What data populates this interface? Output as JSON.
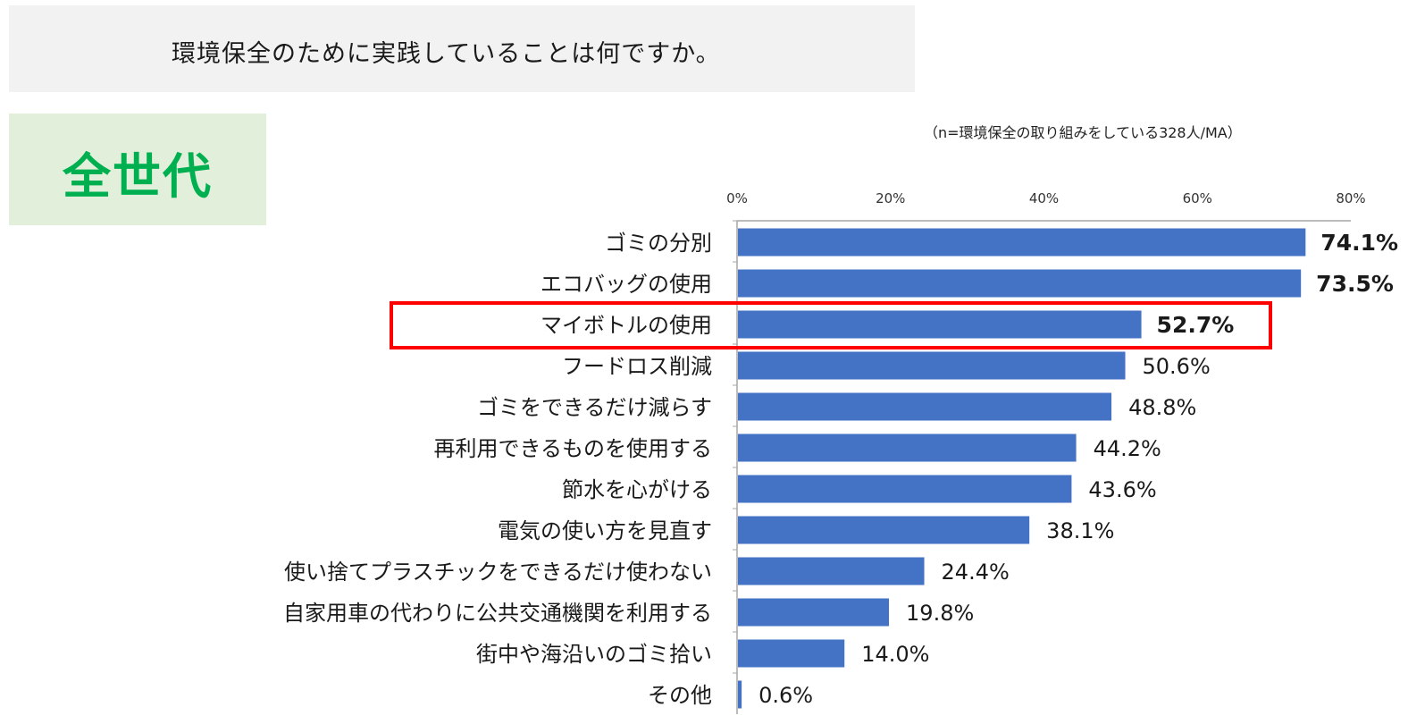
{
  "question": {
    "text": "環境保全のために実践していることは何ですか。"
  },
  "generation": {
    "label": "全世代"
  },
  "note": {
    "text": "（n=環境保全の取り組みをしている328人/MA）"
  },
  "highlight": {
    "color": "#ff0000",
    "category": "マイボトルの使用"
  },
  "chart_data": {
    "type": "bar",
    "orientation": "horizontal",
    "bar_color": "#4472c4",
    "categories": [
      "ゴミの分別",
      "エコバッグの使用",
      "マイボトルの使用",
      "フードロス削減",
      "ゴミをできるだけ減らす",
      "再利用できるものを使用する",
      "節水を心がける",
      "電気の使い方を見直す",
      "使い捨てプラスチックをできるだけ使わない",
      "自家用車の代わりに公共交通機関を利用する",
      "街中や海沿いのゴミ拾い",
      "その他"
    ],
    "values": [
      74.1,
      73.5,
      52.7,
      50.6,
      48.8,
      44.2,
      43.6,
      38.1,
      24.4,
      19.8,
      14.0,
      0.6
    ],
    "value_labels": [
      "74.1%",
      "73.5%",
      "52.7%",
      "50.6%",
      "48.8%",
      "44.2%",
      "43.6%",
      "38.1%",
      "24.4%",
      "19.8%",
      "14.0%",
      "0.6%"
    ],
    "bold_labels": [
      true,
      true,
      true,
      false,
      false,
      false,
      false,
      false,
      false,
      false,
      false,
      false
    ],
    "xlim": [
      0,
      80
    ],
    "xticks": [
      0,
      20,
      40,
      60,
      80
    ],
    "xtick_labels": [
      "0%",
      "20%",
      "40%",
      "60%",
      "80%"
    ],
    "axis_position": "top",
    "grid": false
  }
}
